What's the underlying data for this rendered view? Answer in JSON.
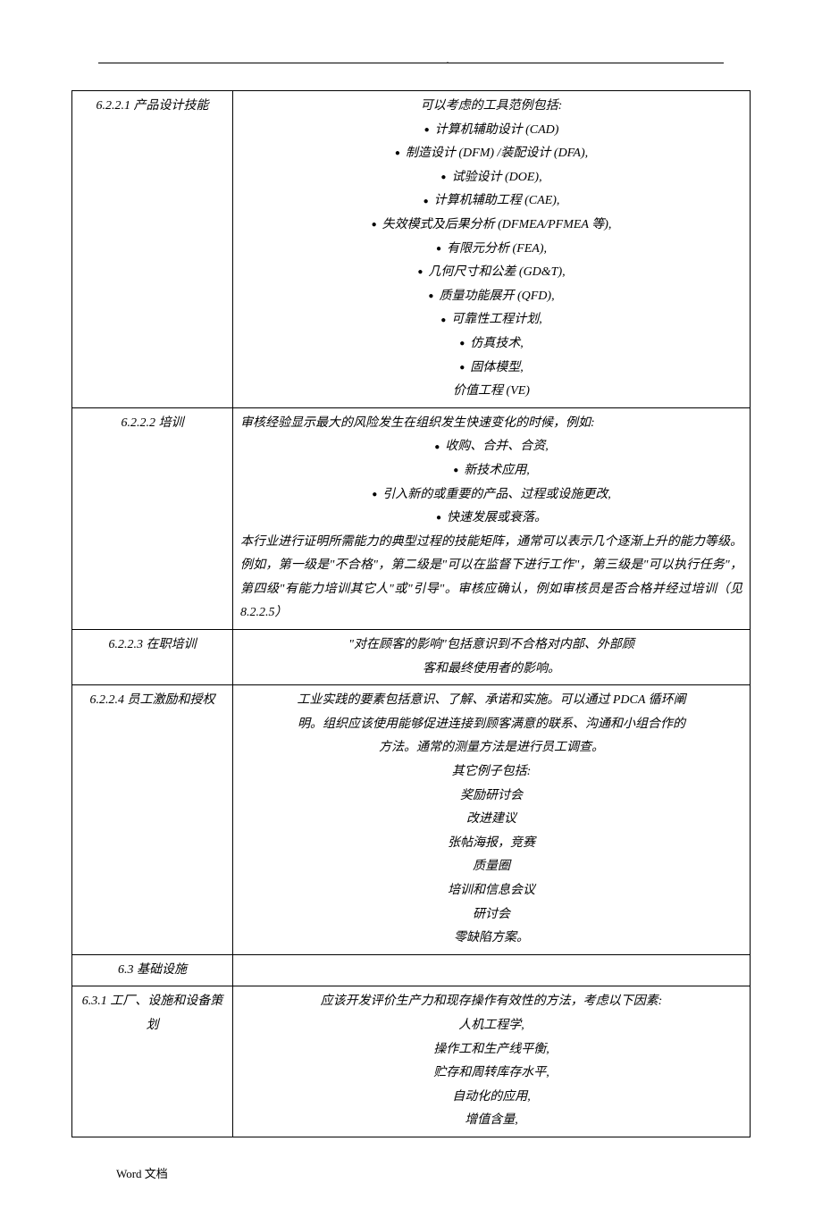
{
  "header_dot": ".",
  "rows": [
    {
      "label": "6.2.2.1 产品设计技能",
      "type": "bullets",
      "intro": "可以考虑的工具范例包括:",
      "items": [
        "计算机辅助设计 (CAD)",
        "制造设计 (DFM) /装配设计 (DFA),",
        "试验设计 (DOE),",
        "计算机辅助工程 (CAE),",
        "失效模式及后果分析 (DFMEA/PFMEA 等),",
        "有限元分析 (FEA),",
        "几何尺寸和公差 (GD&T),",
        "质量功能展开 (QFD),",
        "可靠性工程计划,",
        "仿真技术,",
        "固体模型,"
      ],
      "outro": "价值工程 (VE)"
    },
    {
      "label": "6.2.2.2 培训",
      "type": "mixed",
      "intro": "审核经验显示最大的风险发生在组织发生快速变化的时候，例如:",
      "items": [
        "收购、合并、合资,",
        "新技术应用,",
        "引入新的或重要的产品、过程或设施更改,",
        "快速发展或衰落。"
      ],
      "para": "本行业进行证明所需能力的典型过程的技能矩阵，通常可以表示几个逐渐上升的能力等级。例如，第一级是\"不合格\"，第二级是\"可以在监督下进行工作\"，第三级是\"可以执行任务\"，第四级\"有能力培训其它人\"或\"引导\"。审核应确认，例如审核员是否合格并经过培训（见8.2.2.5）"
    },
    {
      "label": "6.2.2.3 在职培训",
      "type": "plain",
      "lines": [
        "\"对在顾客的影响\"包括意识到不合格对内部、外部顾",
        "客和最终使用者的影响。"
      ]
    },
    {
      "label": "6.2.2.4 员工激励和授权",
      "type": "lines",
      "lines": [
        "工业实践的要素包括意识、了解、承诺和实施。可以通过 PDCA 循环阐",
        "明。组织应该使用能够促进连接到顾客满意的联系、沟通和小组合作的",
        "方法。通常的测量方法是进行员工调查。",
        "其它例子包括:",
        "奖励研讨会",
        "改进建议",
        "张帖海报，竞赛",
        "质量圈",
        "培训和信息会议",
        "研讨会",
        "零缺陷方案。"
      ]
    },
    {
      "label": "6.3 基础设施",
      "type": "empty"
    },
    {
      "label": "6.3.1 工厂、设施和设备策划",
      "type": "lines",
      "lines": [
        "应该开发评价生产力和现存操作有效性的方法，考虑以下因素:",
        "人机工程学,",
        "操作工和生产线平衡,",
        "贮存和周转库存水平,",
        "自动化的应用,",
        "增值含量,"
      ]
    }
  ],
  "footer": "Word 文档"
}
